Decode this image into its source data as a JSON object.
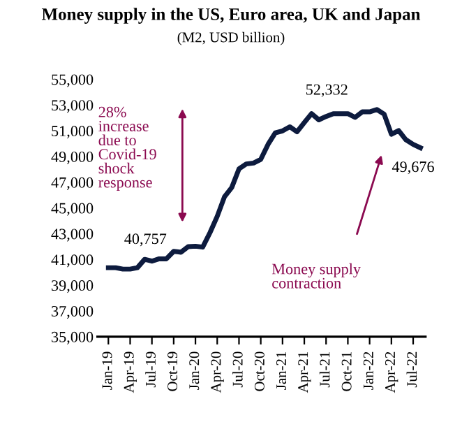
{
  "chart_data": {
    "type": "line",
    "title": "Money supply in the US, Euro area, UK and Japan",
    "subtitle": "(M2, USD billion)",
    "categories": [
      "Jan-19",
      null,
      null,
      "Apr-19",
      null,
      null,
      "Jul-19",
      null,
      null,
      "Oct-19",
      null,
      null,
      "Jan-20",
      null,
      null,
      "Apr-20",
      null,
      null,
      "Jul-20",
      null,
      null,
      "Oct-20",
      null,
      null,
      "Jan-21",
      null,
      null,
      "Apr-21",
      null,
      null,
      "Jul-21",
      null,
      null,
      "Oct-21",
      null,
      null,
      "Jan-22",
      null,
      null,
      "Apr-22",
      null,
      null,
      "Jul-22",
      null
    ],
    "series": [
      {
        "color": "#0d1b3e",
        "values": [
          40360,
          40360,
          40250,
          40250,
          40360,
          41010,
          40870,
          41050,
          41050,
          41630,
          41560,
          42000,
          42030,
          41960,
          43080,
          44350,
          45870,
          46590,
          48040,
          48420,
          48490,
          48780,
          49940,
          50840,
          50990,
          51310,
          50920,
          51640,
          52330,
          51850,
          52110,
          52330,
          52330,
          52330,
          52040,
          52470,
          52470,
          52650,
          52290,
          50730,
          51020,
          50300,
          49940,
          49676
        ]
      }
    ],
    "ylim": [
      35000,
      55000
    ],
    "yticks": [
      {
        "value": 35000,
        "label": "35,000"
      },
      {
        "value": 37000,
        "label": "37,000"
      },
      {
        "value": 39000,
        "label": "39,000"
      },
      {
        "value": 41000,
        "label": "41,000"
      },
      {
        "value": 43000,
        "label": "43,000"
      },
      {
        "value": 45000,
        "label": "45,000"
      },
      {
        "value": 47000,
        "label": "47,000"
      },
      {
        "value": 49000,
        "label": "49,000"
      },
      {
        "value": 51000,
        "label": "51,000"
      },
      {
        "value": 53000,
        "label": "53,000"
      },
      {
        "value": 55000,
        "label": "55,000"
      }
    ],
    "annotations": [
      "28%\nincrease\ndue to\nCovid-19\nshock\nresponse",
      "40,757",
      "52,332",
      "49,676",
      "Money supply\ncontraction"
    ],
    "grid": false,
    "legend": false,
    "marker": "none",
    "line_style": "solid"
  }
}
